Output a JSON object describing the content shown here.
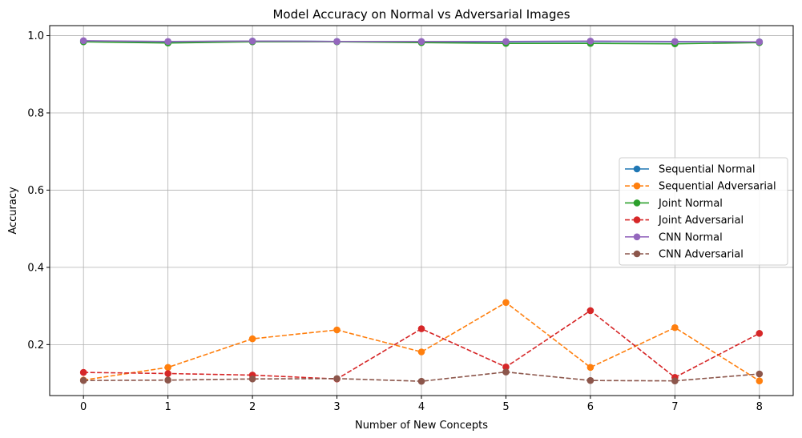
{
  "chart_data": {
    "type": "line",
    "title": "Model Accuracy on Normal vs Adversarial Images",
    "xlabel": "Number of New Concepts",
    "ylabel": "Accuracy",
    "x": [
      0,
      1,
      2,
      3,
      4,
      5,
      6,
      7,
      8
    ],
    "xlim": [
      -0.4,
      8.4
    ],
    "ylim": [
      0.068,
      1.026
    ],
    "xticks": [
      "0",
      "1",
      "2",
      "3",
      "4",
      "5",
      "6",
      "7",
      "8"
    ],
    "yticks": [
      0.2,
      0.4,
      0.6,
      0.8,
      1.0
    ],
    "ytick_labels": [
      "0.2",
      "0.4",
      "0.6",
      "0.8",
      "1.0"
    ],
    "grid": true,
    "legend_position": "center-right",
    "series": [
      {
        "name": "Sequential Normal",
        "color": "#1f77b4",
        "style": "solid",
        "values": [
          0.986,
          0.984,
          0.986,
          0.985,
          0.984,
          0.984,
          0.985,
          0.984,
          0.984
        ]
      },
      {
        "name": "Sequential Adversarial",
        "color": "#ff7f0e",
        "style": "dashed",
        "values": [
          0.108,
          0.141,
          0.215,
          0.238,
          0.181,
          0.309,
          0.141,
          0.244,
          0.106
        ]
      },
      {
        "name": "Joint Normal",
        "color": "#2ca02c",
        "style": "solid",
        "values": [
          0.984,
          0.981,
          0.984,
          0.984,
          0.982,
          0.98,
          0.98,
          0.979,
          0.982
        ]
      },
      {
        "name": "Joint Adversarial",
        "color": "#d62728",
        "style": "dashed",
        "values": [
          0.128,
          0.125,
          0.121,
          0.111,
          0.241,
          0.142,
          0.288,
          0.115,
          0.229
        ]
      },
      {
        "name": "CNN Normal",
        "color": "#9467bd",
        "style": "solid",
        "values": [
          0.987,
          0.985,
          0.986,
          0.985,
          0.985,
          0.985,
          0.986,
          0.985,
          0.984
        ]
      },
      {
        "name": "CNN Adversarial",
        "color": "#8c564b",
        "style": "dashed",
        "values": [
          0.107,
          0.108,
          0.111,
          0.112,
          0.105,
          0.129,
          0.107,
          0.106,
          0.124
        ]
      }
    ]
  }
}
